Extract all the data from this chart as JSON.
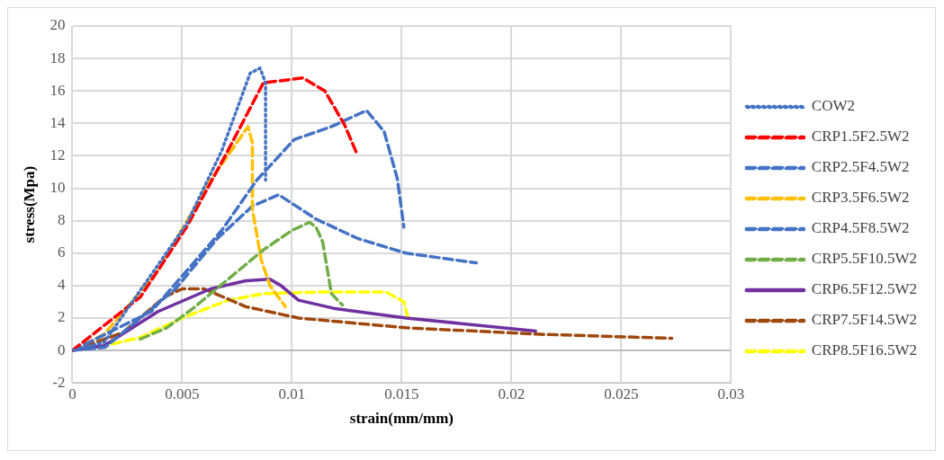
{
  "chart_data": {
    "type": "line",
    "xlabel": "strain(mm/mm)",
    "ylabel": "stress(Mpa)",
    "xlim": [
      0,
      0.03
    ],
    "ylim": [
      -2,
      20
    ],
    "xticks": [
      0,
      0.005,
      0.01,
      0.015,
      0.02,
      0.025,
      0.03
    ],
    "yticks": [
      -2,
      0,
      2,
      4,
      6,
      8,
      10,
      12,
      14,
      16,
      18,
      20
    ],
    "grid": true,
    "legend": "right",
    "marker": "none",
    "series": [
      {
        "name": "COW2",
        "color": "#4472c4",
        "line_style": "dotted",
        "x": [
          0,
          0.00145,
          0.0052,
          0.0068,
          0.0081,
          0.00855,
          0.0088,
          0.0088
        ],
        "values": [
          0,
          0.5,
          7.8,
          12.3,
          17.1,
          17.4,
          16.5,
          10.5
        ]
      },
      {
        "name": "CRP1.5F2.5W2",
        "color": "#ff0000",
        "line_style": "dashed",
        "x": [
          0,
          0.0031,
          0.0052,
          0.007,
          0.0087,
          0.0105,
          0.0115,
          0.0124,
          0.013
        ],
        "values": [
          0,
          3.3,
          7.6,
          12.1,
          16.5,
          16.8,
          16,
          13.9,
          12
        ]
      },
      {
        "name": "CRP2.5F4.5W2",
        "color": "#4472c4",
        "line_style": "dashed",
        "x": [
          0,
          0.0036,
          0.0052,
          0.0068,
          0.0084,
          0.0101,
          0.0118,
          0.0134,
          0.0142,
          0.0148,
          0.0151
        ],
        "values": [
          0,
          2.4,
          4.9,
          7.4,
          10.5,
          13,
          13.8,
          14.8,
          13.5,
          10.6,
          7.6
        ]
      },
      {
        "name": "CRP3.5F6.5W2",
        "color": "#ffc000",
        "line_style": "dashed",
        "x": [
          0,
          0.00145,
          0.0039,
          0.0063,
          0.008,
          0.0082,
          0.0082,
          0.0086,
          0.009,
          0.0097
        ],
        "values": [
          0,
          1,
          4.9,
          10.5,
          13.8,
          12.8,
          8.7,
          5.6,
          4,
          2.7
        ]
      },
      {
        "name": "CRP4.5F8.5W2",
        "color": "#4472c4",
        "line_style": "dashed",
        "x": [
          0,
          0.0015,
          0.0047,
          0.0066,
          0.0082,
          0.0094,
          0.0111,
          0.013,
          0.0152,
          0.0184
        ],
        "values": [
          0,
          0.2,
          3.8,
          6.9,
          8.9,
          9.6,
          8.1,
          6.9,
          6,
          5.4
        ]
      },
      {
        "name": "CRP5.5F10.5W2",
        "color": "#70ad47",
        "line_style": "dashed",
        "x": [
          0.0031,
          0.0043,
          0.0055,
          0.0071,
          0.0087,
          0.01,
          0.0108,
          0.0111,
          0.0114,
          0.0118,
          0.0123
        ],
        "values": [
          0.7,
          1.4,
          2.6,
          4.4,
          6.2,
          7.4,
          7.9,
          7.6,
          6.7,
          3.5,
          2.8
        ]
      },
      {
        "name": "CRP6.5F12.5W2",
        "color": "#7030a0",
        "line_style": "solid",
        "x": [
          0,
          0.00145,
          0.0039,
          0.0063,
          0.0079,
          0.009,
          0.0095,
          0.0103,
          0.0119,
          0.0152,
          0.0211
        ],
        "values": [
          0,
          0.3,
          2.4,
          3.8,
          4.3,
          4.4,
          4,
          3.1,
          2.6,
          2,
          1.2
        ]
      },
      {
        "name": "CRP7.5F14.5W2",
        "color": "#9e480e",
        "line_style": "dashed",
        "x": [
          0,
          0.0023,
          0.0042,
          0.005,
          0.006,
          0.0079,
          0.0103,
          0.0152,
          0.0213,
          0.0273
        ],
        "values": [
          0,
          1.1,
          3.3,
          3.8,
          3.8,
          2.7,
          2,
          1.4,
          1,
          0.75
        ]
      },
      {
        "name": "CRP8.5F16.5W2",
        "color": "#ffff00",
        "line_style": "dashed",
        "x": [
          0,
          0.0015,
          0.0031,
          0.005,
          0.0071,
          0.0087,
          0.0111,
          0.0143,
          0.0151,
          0.0153
        ],
        "values": [
          0,
          0.3,
          0.8,
          2,
          3.1,
          3.5,
          3.6,
          3.6,
          3,
          1.9
        ]
      }
    ]
  }
}
